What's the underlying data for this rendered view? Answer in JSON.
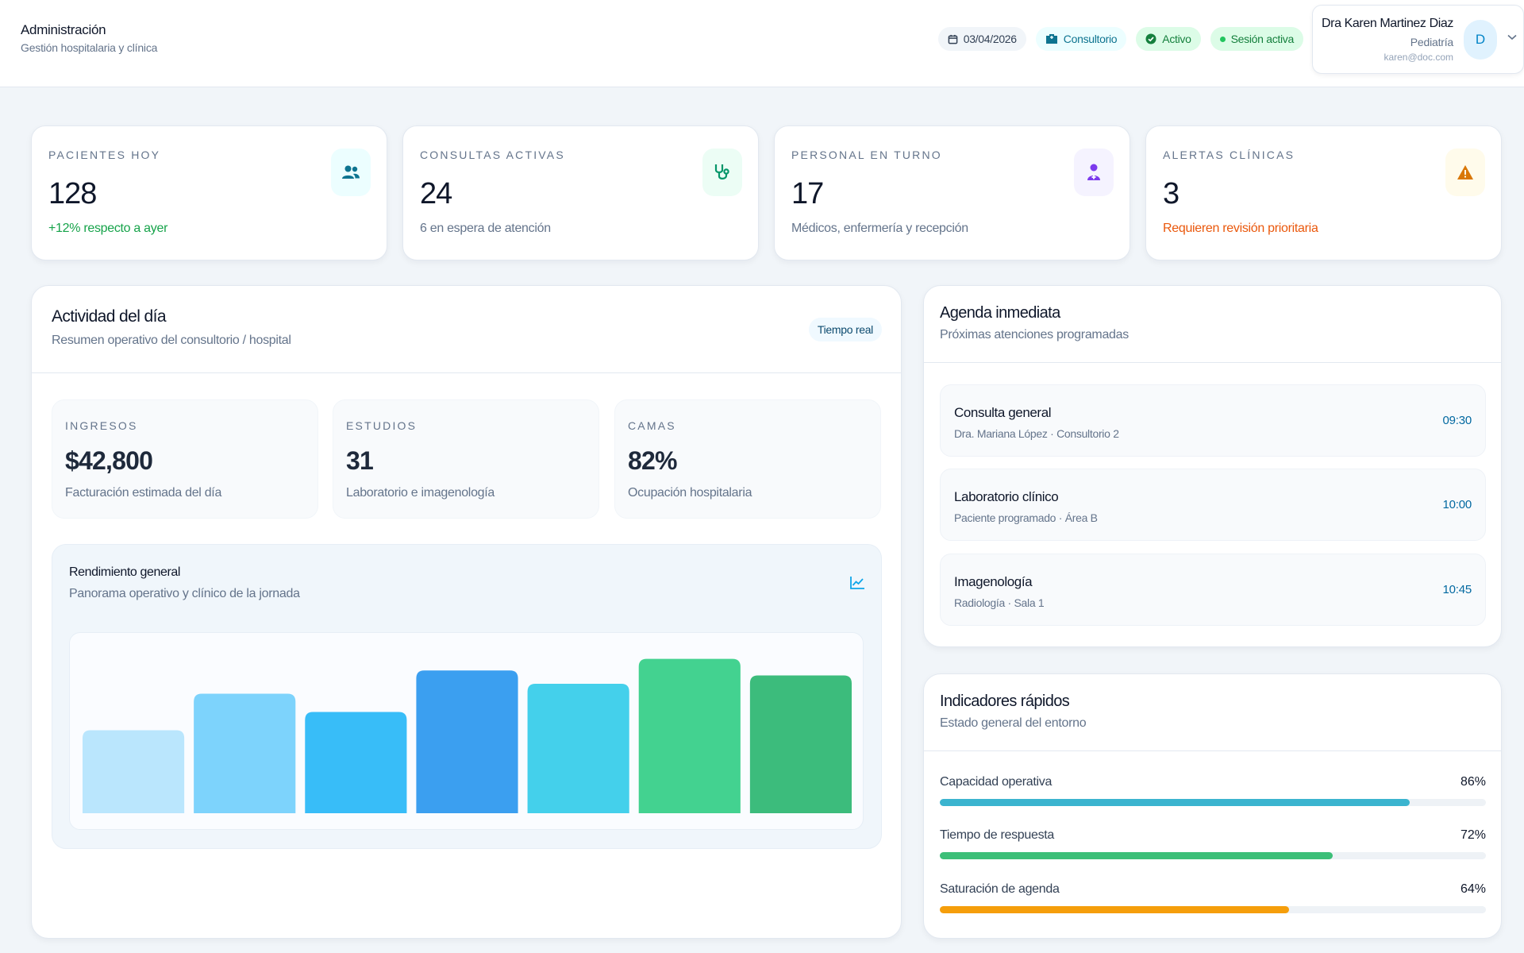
{
  "header": {
    "title": "Administración",
    "subtitle": "Gestión hospitalaria y clínica",
    "date": "03/04/2026",
    "place": "Consultorio",
    "status": "Activo",
    "session": "Sesión activa",
    "user": {
      "name": "Dra Karen Martinez Diaz",
      "role": "Pediatría",
      "email": "karen@doc.com",
      "initial": "D"
    }
  },
  "stats": [
    {
      "label": "PACIENTES HOY",
      "value": "128",
      "note": "+12% respecto a ayer",
      "icon": "users-icon"
    },
    {
      "label": "CONSULTAS ACTIVAS",
      "value": "24",
      "note": "6 en espera de atención",
      "icon": "stethoscope-icon"
    },
    {
      "label": "PERSONAL EN TURNO",
      "value": "17",
      "note": "Médicos, enfermería y recepción",
      "icon": "staff-icon"
    },
    {
      "label": "ALERTAS CLÍNICAS",
      "value": "3",
      "note": "Requieren revisión prioritaria",
      "icon": "warning-icon"
    }
  ],
  "activity": {
    "title": "Actividad del día",
    "subtitle": "Resumen operativo del consultorio / hospital",
    "badge": "Tiempo real",
    "kpis": [
      {
        "label": "INGRESOS",
        "value": "$42,800",
        "note": "Facturación estimada del día"
      },
      {
        "label": "ESTUDIOS",
        "value": "31",
        "note": "Laboratorio e imagenología"
      },
      {
        "label": "CAMAS",
        "value": "82%",
        "note": "Ocupación hospitalaria"
      }
    ],
    "performance": {
      "title": "Rendimiento general",
      "subtitle": "Panorama operativo y clínico de la jornada"
    }
  },
  "chart_data": {
    "type": "bar",
    "values": [
      50,
      72,
      61,
      86,
      78,
      93,
      83
    ],
    "ylim": [
      0,
      100
    ],
    "colors": [
      "#bae6fd",
      "#7dd3fc",
      "#38bdf8",
      "#3b9ff0",
      "#44d0eb",
      "#43d290",
      "#3cbc7c"
    ],
    "grid": false,
    "legend": "none"
  },
  "agenda": {
    "title": "Agenda inmediata",
    "subtitle": "Próximas atenciones programadas",
    "items": [
      {
        "title": "Consulta general",
        "detail": "Dra. Mariana López · Consultorio 2",
        "time": "09:30"
      },
      {
        "title": "Laboratorio clínico",
        "detail": "Paciente programado · Área B",
        "time": "10:00"
      },
      {
        "title": "Imagenología",
        "detail": "Radiología · Sala 1",
        "time": "10:45"
      }
    ]
  },
  "indicators": {
    "title": "Indicadores rápidos",
    "subtitle": "Estado general del entorno",
    "items": [
      {
        "label": "Capacidad operativa",
        "value": "86%",
        "fraction": 0.86,
        "color": "#3bb4cf"
      },
      {
        "label": "Tiempo de respuesta",
        "value": "72%",
        "fraction": 0.72,
        "color": "#3cbf78"
      },
      {
        "label": "Saturación de agenda",
        "value": "64%",
        "fraction": 0.64,
        "color": "#f59e0b"
      }
    ]
  }
}
